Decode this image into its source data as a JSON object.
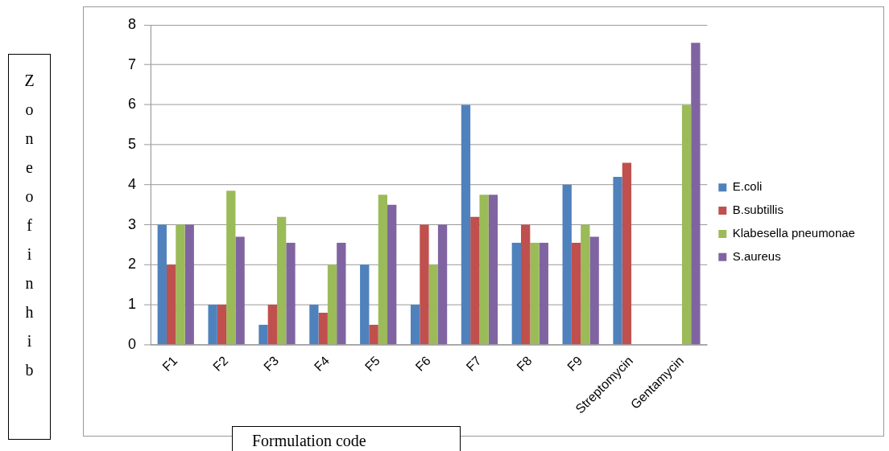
{
  "chart_data": {
    "type": "bar",
    "xlabel": "Formulation code",
    "ylabel": "Zoneofinhib",
    "categories": [
      "F1",
      "F2",
      "F3",
      "F4",
      "F5",
      "F6",
      "F7",
      "F8",
      "F9",
      "Streptomycin",
      "Gentamycin"
    ],
    "series": [
      {
        "name": "E.coli",
        "color": "#4f81bd",
        "values": [
          3,
          1,
          0.5,
          1,
          2,
          1,
          6,
          2.55,
          4,
          4.2,
          null
        ]
      },
      {
        "name": "B.subtillis",
        "color": "#c0504d",
        "values": [
          2,
          1,
          1,
          0.8,
          0.5,
          3,
          3.2,
          3,
          2.55,
          4.55,
          null
        ]
      },
      {
        "name": "Klabesella pneumonae",
        "color": "#9bbb59",
        "values": [
          3,
          3.85,
          3.2,
          2,
          3.75,
          2,
          3.75,
          2.55,
          3,
          null,
          6
        ]
      },
      {
        "name": "S.aureus",
        "color": "#8064a2",
        "values": [
          3,
          2.7,
          2.55,
          2.55,
          3.5,
          3,
          3.75,
          2.55,
          2.7,
          null,
          7.55
        ]
      }
    ],
    "ylim": [
      0,
      8
    ],
    "yticks": [
      0,
      1,
      2,
      3,
      4,
      5,
      6,
      7,
      8
    ],
    "grid": "y",
    "legend": "right"
  }
}
